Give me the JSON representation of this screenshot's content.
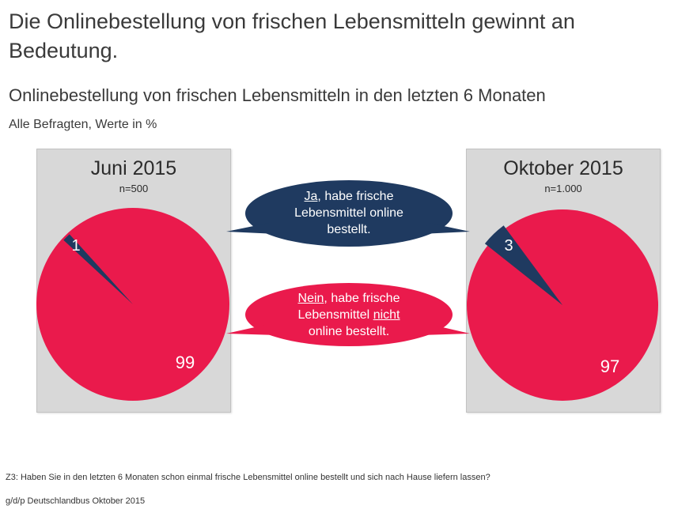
{
  "title": "Die Onlinebestellung von frischen Lebensmitteln gewinnt an Bedeutung.",
  "subtitle": "Onlinebestellung von frischen Lebensmitteln in den letzten 6 Monaten",
  "basis": "Alle Befragten, Werte in %",
  "colors": {
    "ja": "#1f3a60",
    "nein": "#ea1a4c",
    "panel": "#d8d8d8"
  },
  "callouts": {
    "ja": {
      "underlined": "Ja",
      "rest1": ", habe frische",
      "line2": "Lebensmittel online",
      "line3": "bestellt."
    },
    "nein": {
      "underlined": "Nein",
      "rest1": ", habe frische",
      "line2a": "Lebensmittel ",
      "line2u": "nicht",
      "line3": "online bestellt."
    }
  },
  "chart_data": [
    {
      "type": "pie",
      "title": "Juni 2015",
      "subtitle": "n=500",
      "categories": [
        "Ja, habe frische Lebensmittel online bestellt.",
        "Nein, habe frische Lebensmittel nicht online bestellt."
      ],
      "values": [
        1,
        99
      ],
      "labels": [
        "1",
        "99"
      ]
    },
    {
      "type": "pie",
      "title": "Oktober 2015",
      "subtitle": "n=1.000",
      "categories": [
        "Ja, habe frische Lebensmittel online bestellt.",
        "Nein, habe frische Lebensmittel nicht online bestellt."
      ],
      "values": [
        3,
        97
      ],
      "labels": [
        "3",
        "97"
      ]
    }
  ],
  "footnote": "Z3: Haben Sie in den letzten 6 Monaten schon einmal frische Lebensmittel online bestellt und sich nach Hause liefern lassen?",
  "source": "g/d/p Deutschlandbus Oktober 2015"
}
